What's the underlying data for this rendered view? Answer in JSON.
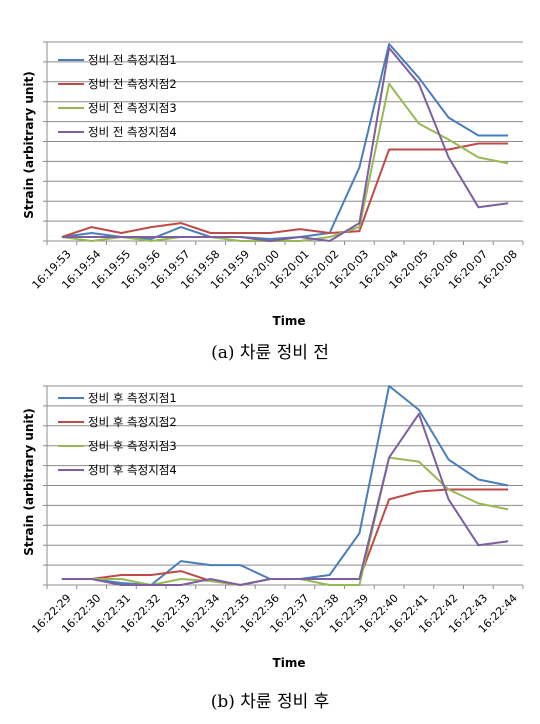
{
  "chart_data": [
    {
      "type": "line",
      "caption": "(a) 차륜 정비 전",
      "xlabel": "Time",
      "ylabel": "Strain (arbitrary unit)",
      "ylim": [
        0,
        10
      ],
      "grid": "horizontal",
      "legend_position": "top-left",
      "categories": [
        "16:19:53",
        "16:19:54",
        "16:19:55",
        "16:19:56",
        "16:19:57",
        "16:19:58",
        "16:19:59",
        "16:20:00",
        "16:20:01",
        "16:20:02",
        "16:20:03",
        "16:20:04",
        "16:20:05",
        "16:20:06",
        "16:20:07",
        "16:20:08"
      ],
      "series": [
        {
          "name": "정비 전 측정지점1",
          "color": "#4a7ebb",
          "values": [
            0.2,
            0.4,
            0.2,
            0.1,
            0.7,
            0.2,
            0.2,
            0.1,
            0.2,
            0.4,
            3.7,
            9.9,
            8.2,
            6.2,
            5.3,
            5.3
          ]
        },
        {
          "name": "정비 전 측정지점2",
          "color": "#be4b48",
          "values": [
            0.2,
            0.7,
            0.4,
            0.7,
            0.9,
            0.4,
            0.4,
            0.4,
            0.6,
            0.4,
            0.5,
            4.6,
            4.6,
            4.6,
            4.9,
            4.9
          ]
        },
        {
          "name": "정비 전 측정지점3",
          "color": "#98b954",
          "values": [
            0.2,
            0.0,
            0.2,
            0.0,
            0.2,
            0.2,
            0.0,
            0.0,
            0.0,
            0.2,
            0.7,
            7.9,
            5.9,
            5.1,
            4.2,
            3.9
          ]
        },
        {
          "name": "정비 전 측정지점4",
          "color": "#7d5fa0",
          "values": [
            0.2,
            0.2,
            0.2,
            0.2,
            0.2,
            0.2,
            0.2,
            0.0,
            0.2,
            0.0,
            0.9,
            9.7,
            7.9,
            4.2,
            1.7,
            1.9
          ]
        }
      ]
    },
    {
      "type": "line",
      "caption": "(b) 차륜 정비 후",
      "xlabel": "Time",
      "ylabel": "Strain (arbitrary unit)",
      "ylim": [
        0,
        10
      ],
      "grid": "horizontal",
      "legend_position": "top-left",
      "categories": [
        "16:22:29",
        "16:22:30",
        "16:22:31",
        "16:22:32",
        "16:22:33",
        "16:22:34",
        "16:22:35",
        "16:22:36",
        "16:22:37",
        "16:22:38",
        "16:22:39",
        "16:22:40",
        "16:22:41",
        "16:22:42",
        "16:22:43",
        "16:22:44"
      ],
      "series": [
        {
          "name": "정비 후 측정지점1",
          "color": "#4a7ebb",
          "values": [
            0.3,
            0.3,
            0.1,
            0.0,
            1.2,
            1.0,
            1.0,
            0.3,
            0.3,
            0.5,
            2.6,
            10.0,
            8.8,
            6.3,
            5.3,
            5.0
          ]
        },
        {
          "name": "정비 후 측정지점2",
          "color": "#be4b48",
          "values": [
            0.3,
            0.3,
            0.5,
            0.5,
            0.7,
            0.2,
            0.0,
            0.3,
            0.3,
            0.3,
            0.3,
            4.3,
            4.7,
            4.8,
            4.8,
            4.8
          ]
        },
        {
          "name": "정비 후 측정지점3",
          "color": "#98b954",
          "values": [
            0.3,
            0.3,
            0.3,
            0.0,
            0.3,
            0.2,
            0.0,
            0.3,
            0.3,
            0.0,
            0.0,
            6.4,
            6.2,
            4.8,
            4.1,
            3.8
          ]
        },
        {
          "name": "정비 후 측정지점4",
          "color": "#7d5fa0",
          "values": [
            0.3,
            0.3,
            0.0,
            0.0,
            0.0,
            0.3,
            0.0,
            0.3,
            0.3,
            0.3,
            0.3,
            6.4,
            8.6,
            4.3,
            2.0,
            2.2
          ]
        }
      ]
    }
  ]
}
